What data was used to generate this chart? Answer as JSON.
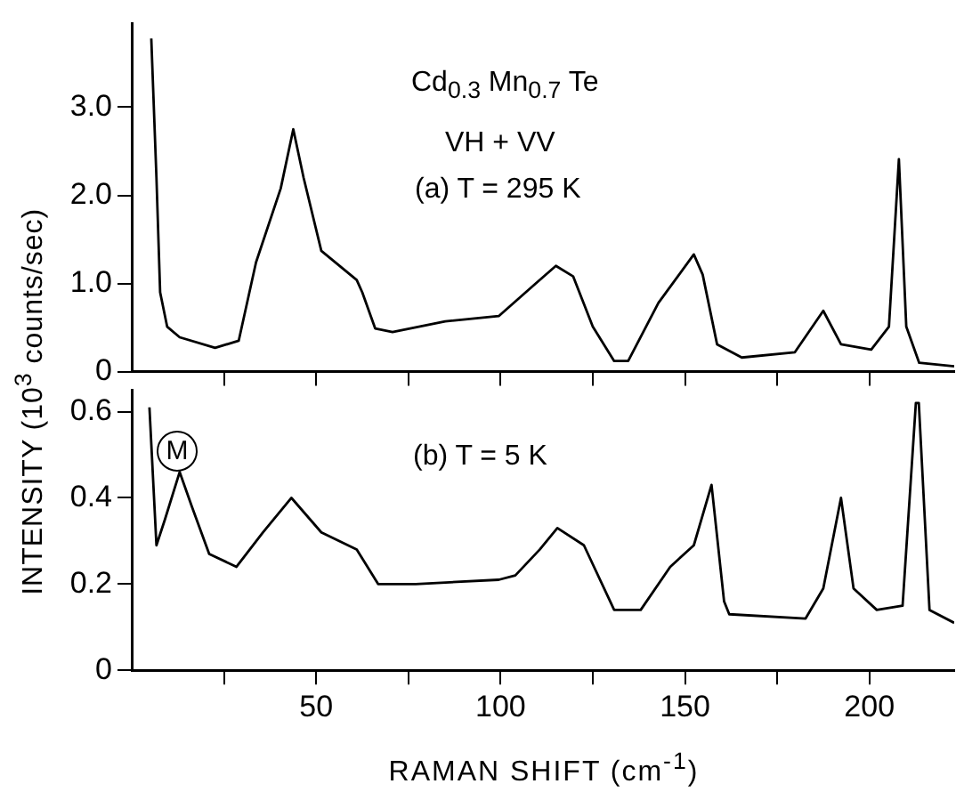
{
  "chart_data": [
    {
      "type": "line",
      "ylabel": "INTENSITY (10$^{3}$ counts/sec)",
      "annotations": [
        "Cd$_{0.3}$ Mn$_{0.7}$ Te",
        "VH + VV",
        "(a)  T = 295 K"
      ],
      "xlim": [
        0,
        223
      ],
      "xticks": [
        {
          "value": 25,
          "label": null
        },
        {
          "value": 50,
          "label": null
        },
        {
          "value": 75,
          "label": null
        },
        {
          "value": 100,
          "label": null
        },
        {
          "value": 125,
          "label": null
        },
        {
          "value": 150,
          "label": null
        },
        {
          "value": 175,
          "label": null
        },
        {
          "value": 200,
          "label": null
        }
      ],
      "ylim": [
        0,
        3.95
      ],
      "yticks": [
        0,
        {
          "value": 1,
          "label": "1.0"
        },
        {
          "value": 2,
          "label": "2.0"
        },
        {
          "value": 3,
          "label": "3.0"
        }
      ],
      "tick_labels": "y",
      "grid": false,
      "legend": false,
      "marker": "none",
      "line_style": "solid",
      "series": [
        {
          "color": "#000000",
          "x": [
            5.3,
            6.7,
            7.7,
            9.6,
            13,
            22.6,
            29,
            33.7,
            40.4,
            43.8,
            46.6,
            51.4,
            61,
            62.5,
            66,
            70.7,
            85,
            99.5,
            109,
            115,
            119.7,
            125,
            130.8,
            134.6,
            142.8,
            152.4,
            154.8,
            158.7,
            165.4,
            179.8,
            187.5,
            192.3,
            200.5,
            205.3,
            208,
            210,
            213.5,
            223
          ],
          "values": [
            3.78,
            2.2,
            0.9,
            0.51,
            0.39,
            0.27,
            0.35,
            1.24,
            2.08,
            2.75,
            2.2,
            1.37,
            1.04,
            0.9,
            0.49,
            0.45,
            0.57,
            0.63,
            0.98,
            1.2,
            1.08,
            0.51,
            0.12,
            0.12,
            0.78,
            1.33,
            1.1,
            0.31,
            0.16,
            0.22,
            0.69,
            0.31,
            0.25,
            0.51,
            2.41,
            0.51,
            0.1,
            0.06
          ]
        }
      ]
    },
    {
      "type": "line",
      "xlabel": "RAMAN SHIFT (cm$^{-1}$)",
      "annotations": [
        "M",
        "(b)  T = 5 K"
      ],
      "xlim": [
        0,
        223
      ],
      "xticks": [
        {
          "value": 25,
          "label": null
        },
        50,
        {
          "value": 75,
          "label": null
        },
        100,
        {
          "value": 125,
          "label": null
        },
        150,
        {
          "value": 175,
          "label": null
        },
        200
      ],
      "ylim": [
        0,
        0.65
      ],
      "yticks": [
        0,
        0.2,
        0.4,
        0.6
      ],
      "grid": false,
      "legend": false,
      "marker": "none",
      "line_style": "solid",
      "series": [
        {
          "color": "#000000",
          "x": [
            4.8,
            6.7,
            9,
            13,
            16.3,
            21,
            28.4,
            35.6,
            43.3,
            51.4,
            61,
            66.8,
            77,
            99.5,
            104,
            110.6,
            115.4,
            122.6,
            130.8,
            138,
            146,
            152.4,
            157.2,
            160.6,
            162,
            182.7,
            187.5,
            192.3,
            195.7,
            202,
            209,
            212.6,
            213.4,
            216.3,
            223
          ],
          "values": [
            0.61,
            0.29,
            0.35,
            0.46,
            0.38,
            0.27,
            0.24,
            0.32,
            0.4,
            0.32,
            0.28,
            0.2,
            0.2,
            0.21,
            0.22,
            0.28,
            0.33,
            0.29,
            0.14,
            0.14,
            0.24,
            0.29,
            0.43,
            0.16,
            0.13,
            0.12,
            0.19,
            0.4,
            0.19,
            0.14,
            0.15,
            0.62,
            0.62,
            0.14,
            0.11
          ]
        }
      ]
    }
  ]
}
